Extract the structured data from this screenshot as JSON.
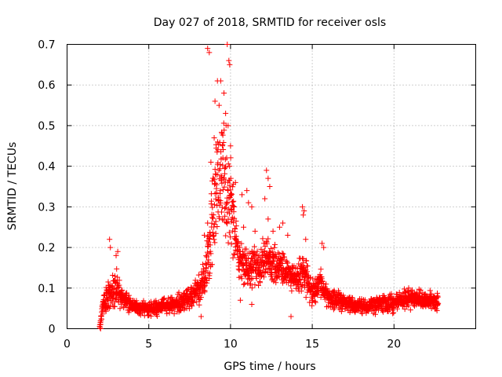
{
  "chart_data": {
    "type": "scatter",
    "title": "Day 027 of 2018, SRMTID for receiver osls",
    "xlabel": "GPS time / hours",
    "ylabel": "SRMTID / TECUs",
    "xlim": [
      0,
      25
    ],
    "ylim": [
      0,
      0.7
    ],
    "xticks": [
      "0",
      "5",
      "10",
      "15",
      "20"
    ],
    "yticks": [
      "0",
      "0.1",
      "0.2",
      "0.3",
      "0.4",
      "0.5",
      "0.6",
      "0.7"
    ],
    "grid": true,
    "marker": "+",
    "color": "#ff0000",
    "series": [
      {
        "name": "SRMTID",
        "envelope": [
          {
            "x": 2.0,
            "mean": 0.005,
            "spread": 0.006
          },
          {
            "x": 2.2,
            "mean": 0.06,
            "spread": 0.04
          },
          {
            "x": 2.5,
            "mean": 0.08,
            "spread": 0.06
          },
          {
            "x": 3.0,
            "mean": 0.1,
            "spread": 0.06
          },
          {
            "x": 3.5,
            "mean": 0.07,
            "spread": 0.035
          },
          {
            "x": 4.0,
            "mean": 0.055,
            "spread": 0.025
          },
          {
            "x": 5.0,
            "mean": 0.05,
            "spread": 0.025
          },
          {
            "x": 6.0,
            "mean": 0.055,
            "spread": 0.028
          },
          {
            "x": 7.0,
            "mean": 0.065,
            "spread": 0.03
          },
          {
            "x": 8.0,
            "mean": 0.09,
            "spread": 0.045
          },
          {
            "x": 8.5,
            "mean": 0.13,
            "spread": 0.07
          },
          {
            "x": 9.0,
            "mean": 0.3,
            "spread": 0.18
          },
          {
            "x": 9.5,
            "mean": 0.4,
            "spread": 0.22
          },
          {
            "x": 10.0,
            "mean": 0.3,
            "spread": 0.17
          },
          {
            "x": 10.5,
            "mean": 0.17,
            "spread": 0.07
          },
          {
            "x": 11.0,
            "mean": 0.15,
            "spread": 0.06
          },
          {
            "x": 12.0,
            "mean": 0.16,
            "spread": 0.07
          },
          {
            "x": 12.5,
            "mean": 0.17,
            "spread": 0.08
          },
          {
            "x": 13.0,
            "mean": 0.15,
            "spread": 0.06
          },
          {
            "x": 14.0,
            "mean": 0.12,
            "spread": 0.05
          },
          {
            "x": 14.5,
            "mean": 0.14,
            "spread": 0.07
          },
          {
            "x": 15.0,
            "mean": 0.09,
            "spread": 0.04
          },
          {
            "x": 15.5,
            "mean": 0.11,
            "spread": 0.05
          },
          {
            "x": 16.0,
            "mean": 0.08,
            "spread": 0.035
          },
          {
            "x": 17.0,
            "mean": 0.065,
            "spread": 0.03
          },
          {
            "x": 18.0,
            "mean": 0.055,
            "spread": 0.025
          },
          {
            "x": 19.0,
            "mean": 0.06,
            "spread": 0.028
          },
          {
            "x": 20.0,
            "mean": 0.065,
            "spread": 0.03
          },
          {
            "x": 21.0,
            "mean": 0.075,
            "spread": 0.032
          },
          {
            "x": 22.0,
            "mean": 0.07,
            "spread": 0.03
          },
          {
            "x": 22.7,
            "mean": 0.065,
            "spread": 0.025
          }
        ],
        "highlights": [
          [
            8.6,
            0.69
          ],
          [
            8.7,
            0.68
          ],
          [
            9.8,
            0.7
          ],
          [
            9.9,
            0.66
          ],
          [
            9.95,
            0.65
          ],
          [
            9.2,
            0.61
          ],
          [
            9.4,
            0.61
          ],
          [
            9.6,
            0.58
          ],
          [
            9.05,
            0.56
          ],
          [
            9.3,
            0.55
          ],
          [
            9.7,
            0.53
          ],
          [
            9.85,
            0.5
          ],
          [
            9.0,
            0.47
          ],
          [
            9.5,
            0.45
          ],
          [
            10.0,
            0.45
          ],
          [
            8.8,
            0.41
          ],
          [
            9.1,
            0.38
          ],
          [
            10.3,
            0.36
          ],
          [
            12.2,
            0.39
          ],
          [
            12.3,
            0.37
          ],
          [
            12.4,
            0.35
          ],
          [
            12.1,
            0.32
          ],
          [
            12.3,
            0.27
          ],
          [
            14.4,
            0.3
          ],
          [
            14.5,
            0.29
          ],
          [
            14.45,
            0.28
          ],
          [
            11.0,
            0.34
          ],
          [
            11.1,
            0.31
          ],
          [
            10.7,
            0.33
          ],
          [
            11.3,
            0.3
          ],
          [
            2.6,
            0.22
          ],
          [
            2.65,
            0.2
          ],
          [
            3.1,
            0.19
          ],
          [
            3.0,
            0.18
          ],
          [
            13.2,
            0.26
          ],
          [
            13.0,
            0.25
          ],
          [
            15.6,
            0.21
          ],
          [
            15.7,
            0.2
          ],
          [
            8.6,
            0.26
          ],
          [
            8.4,
            0.23
          ],
          [
            10.8,
            0.25
          ],
          [
            11.5,
            0.24
          ],
          [
            12.6,
            0.24
          ],
          [
            13.5,
            0.23
          ],
          [
            14.6,
            0.22
          ],
          [
            8.2,
            0.03
          ],
          [
            11.3,
            0.06
          ],
          [
            13.7,
            0.03
          ],
          [
            10.6,
            0.07
          ],
          [
            2.05,
            0.0
          ]
        ]
      }
    ]
  }
}
